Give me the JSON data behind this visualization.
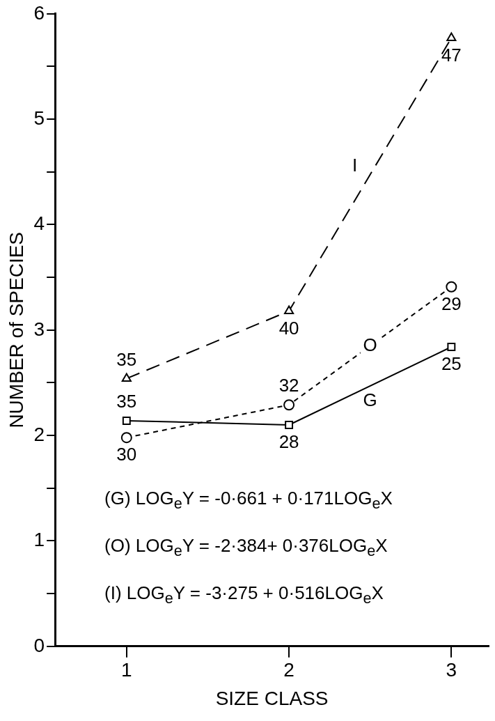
{
  "chart_data": {
    "type": "line",
    "xlabel": "SIZE CLASS",
    "ylabel": "NUMBER of SPECIES",
    "xlim": [
      0.56,
      3.23
    ],
    "xticks": [
      1,
      2,
      3
    ],
    "ylim": [
      0,
      6
    ],
    "yticks": [
      0,
      {
        "value": 0.5,
        "label": null
      },
      1,
      {
        "value": 1.5,
        "label": null
      },
      2,
      {
        "value": 2.5,
        "label": null
      },
      3,
      {
        "value": 3.5,
        "label": null
      },
      4,
      {
        "value": 4.5,
        "label": null
      },
      5,
      {
        "value": 5.5,
        "label": null
      },
      6
    ],
    "x": [
      1,
      2,
      3
    ],
    "series": [
      {
        "name": "I",
        "color": "#000000",
        "values": [
          2.54,
          3.18,
          5.77
        ],
        "marker": "triangle",
        "line_style": "dashed"
      },
      {
        "name": "O",
        "color": "#000000",
        "values": [
          1.98,
          2.29,
          3.41
        ],
        "marker": "circle",
        "line_style": "dotted"
      },
      {
        "name": "G",
        "color": "#000000",
        "values": [
          2.14,
          2.1,
          2.84
        ],
        "marker": "square",
        "line_style": "solid"
      }
    ],
    "annotations": [
      {
        "text": "35",
        "x": 1,
        "y": 2.54
      },
      {
        "text": "40",
        "x": 2,
        "y": 3.18
      },
      {
        "text": "47",
        "x": 3,
        "y": 5.77
      },
      {
        "text": "30",
        "x": 1,
        "y": 1.98
      },
      {
        "text": "32",
        "x": 2,
        "y": 2.29
      },
      {
        "text": "29",
        "x": 3,
        "y": 3.41
      },
      {
        "text": "35",
        "x": 1,
        "y": 2.14
      },
      {
        "text": "28",
        "x": 2,
        "y": 2.1
      },
      {
        "text": "25",
        "x": 3,
        "y": 2.84
      },
      "(G) LOG$_{e}$Y = -0·661 + 0·171LOG$_{e}$X",
      "(O) LOG$_{e}$Y = -2·384+ 0·376LOG$_{e}$X",
      "(I) LOG$_{e}$Y = -3·275 + 0·516LOG$_{e}$X"
    ],
    "grid": false,
    "legend": false
  }
}
